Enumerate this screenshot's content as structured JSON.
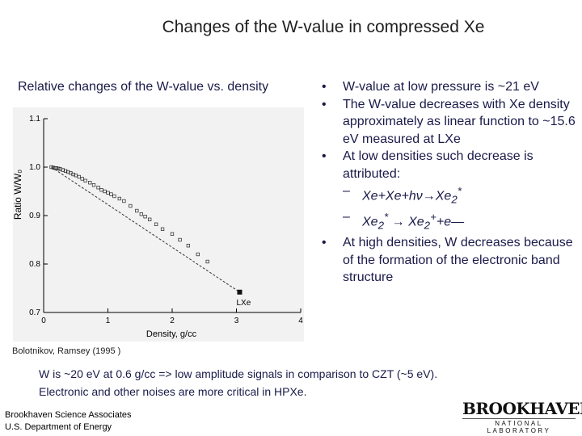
{
  "title": "Changes of the W-value in compressed Xe",
  "subtitle": "Relative changes of the W-value vs. density",
  "bullets": [
    "W-value at low pressure is ~21 eV",
    "The W-value decreases with Xe density approximately as linear function to ~15.6 eV measured at LXe",
    "At low densities such decrease is attributed:",
    "At high densities, W decreases because of  the formation of the electronic band structure"
  ],
  "sub_bullets": {
    "r1_a": "Xe+Xe+hν",
    "r1_arrow": "→",
    "r1_b": "Xe",
    "r1_sub": "2",
    "r1_sup": "*",
    "r2_a": "Xe",
    "r2_sub": "2",
    "r2_sup": "*",
    "r2_arrow": "→",
    "r2_b": "Xe",
    "r2_sub2": "2",
    "r2_sup2": "+",
    "r2_c": "+e—"
  },
  "credit": "Bolotnikov, Ramsey (1995 )",
  "note_line1": "W is ~20 eV at 0.6 g/cc => low amplitude signals in comparison to CZT (~5 eV).",
  "note_line2": "Electronic and other noises are more critical in HPXe.",
  "footer_line1": "Brookhaven Science Associates",
  "footer_line2": "U.S. Department of Energy",
  "logo_main": "BROOKHAVEN",
  "logo_sub": "NATIONAL LABORATORY",
  "chart_data": {
    "type": "scatter",
    "xlabel": "Density, g/cc",
    "ylabel": "Ratio W/W₀",
    "xlim": [
      0,
      4
    ],
    "ylim": [
      0.7,
      1.1
    ],
    "xticks": [
      "0",
      "1",
      "2",
      "3",
      "4"
    ],
    "yticks": [
      "0.7",
      "0.8",
      "0.9",
      "1.0",
      "1.1"
    ],
    "annotation": "LXe",
    "points": [
      {
        "x": 0.12,
        "y": 1.0
      },
      {
        "x": 0.15,
        "y": 0.999
      },
      {
        "x": 0.18,
        "y": 0.998
      },
      {
        "x": 0.2,
        "y": 0.998
      },
      {
        "x": 0.23,
        "y": 0.997
      },
      {
        "x": 0.26,
        "y": 0.996
      },
      {
        "x": 0.3,
        "y": 0.994
      },
      {
        "x": 0.34,
        "y": 0.992
      },
      {
        "x": 0.38,
        "y": 0.99
      },
      {
        "x": 0.42,
        "y": 0.988
      },
      {
        "x": 0.46,
        "y": 0.985
      },
      {
        "x": 0.5,
        "y": 0.983
      },
      {
        "x": 0.55,
        "y": 0.98
      },
      {
        "x": 0.6,
        "y": 0.976
      },
      {
        "x": 0.65,
        "y": 0.972
      },
      {
        "x": 0.72,
        "y": 0.968
      },
      {
        "x": 0.78,
        "y": 0.963
      },
      {
        "x": 0.85,
        "y": 0.958
      },
      {
        "x": 0.9,
        "y": 0.953
      },
      {
        "x": 0.95,
        "y": 0.95
      },
      {
        "x": 1.0,
        "y": 0.947
      },
      {
        "x": 1.05,
        "y": 0.944
      },
      {
        "x": 1.1,
        "y": 0.94
      },
      {
        "x": 1.18,
        "y": 0.935
      },
      {
        "x": 1.25,
        "y": 0.93
      },
      {
        "x": 1.35,
        "y": 0.92
      },
      {
        "x": 1.45,
        "y": 0.91
      },
      {
        "x": 1.52,
        "y": 0.903
      },
      {
        "x": 1.58,
        "y": 0.898
      },
      {
        "x": 1.65,
        "y": 0.892
      },
      {
        "x": 1.75,
        "y": 0.882
      },
      {
        "x": 1.85,
        "y": 0.872
      },
      {
        "x": 2.0,
        "y": 0.862
      },
      {
        "x": 2.12,
        "y": 0.85
      },
      {
        "x": 2.25,
        "y": 0.838
      },
      {
        "x": 2.4,
        "y": 0.82
      },
      {
        "x": 2.55,
        "y": 0.805
      }
    ],
    "lxe_point": {
      "x": 3.05,
      "y": 0.742
    },
    "fit_line": {
      "x": [
        0.12,
        3.05
      ],
      "y": [
        1.0,
        0.742
      ]
    }
  }
}
